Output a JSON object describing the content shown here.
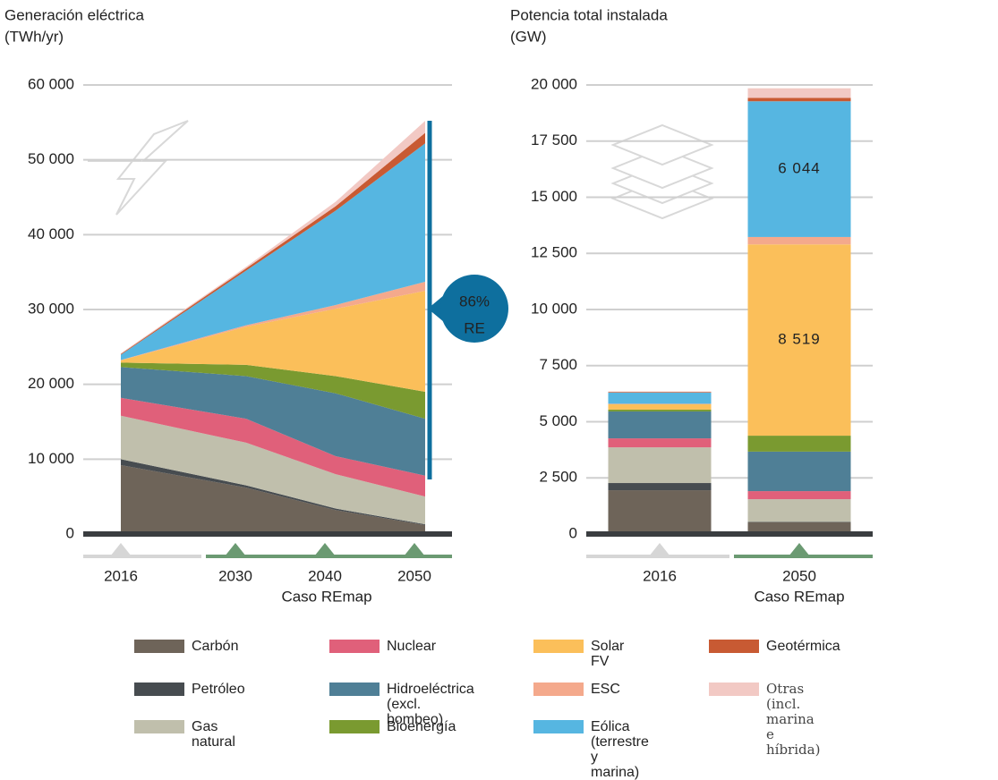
{
  "chart_data": [
    {
      "type": "area",
      "title": "Generación eléctrica",
      "y_label": "(TWh/yr)",
      "x": [
        2016,
        2030,
        2040,
        2050
      ],
      "xlim": [
        2016,
        2050
      ],
      "x_group_label": "Caso REmap",
      "ylim": [
        0,
        60000
      ],
      "yticks": [
        0,
        {
          "value": 10000,
          "label": "10 000"
        },
        {
          "value": 20000,
          "label": "20 000"
        },
        {
          "value": 30000,
          "label": "30 000"
        },
        {
          "value": 40000,
          "label": "40 000"
        },
        {
          "value": 50000,
          "label": "50 000"
        },
        {
          "value": 60000,
          "label": "60 000"
        }
      ],
      "grid": true,
      "stacked": true,
      "annotation": {
        "share": "86%",
        "label": "RE"
      },
      "series": [
        {
          "name": "Carbón",
          "color": "#6e6459",
          "values": [
            9200,
            6200,
            3200,
            1200
          ]
        },
        {
          "name": "Petróleo",
          "color": "#474c50",
          "values": [
            800,
            300,
            200,
            100
          ]
        },
        {
          "name": "Gas natural",
          "color": "#c0bfac",
          "values": [
            5800,
            5700,
            4600,
            3700
          ]
        },
        {
          "name": "Nuclear",
          "color": "#e0607a",
          "values": [
            2400,
            3200,
            2400,
            2800
          ]
        },
        {
          "name": "Hidroeléctrica (excl. bombeo)",
          "color": "#4f7f96",
          "values": [
            4100,
            5700,
            8400,
            7600
          ]
        },
        {
          "name": "Bioenergía",
          "color": "#7a9a30",
          "values": [
            600,
            1500,
            2300,
            3600
          ]
        },
        {
          "name": "Solar FV",
          "color": "#fbbf5a",
          "values": [
            300,
            5100,
            9000,
            13500
          ]
        },
        {
          "name": "ESC",
          "color": "#f4a98c",
          "values": [
            50,
            200,
            500,
            1200
          ]
        },
        {
          "name": "Eólica (terrestre y marina)",
          "color": "#56b6e1",
          "values": [
            700,
            7300,
            12600,
            18500
          ]
        },
        {
          "name": "Geotérmica",
          "color": "#c85a33",
          "values": [
            100,
            300,
            600,
            1400
          ]
        },
        {
          "name": "Otras  (incl. marina e híbrida)",
          "color": "#f2c9c4",
          "values": [
            100,
            200,
            600,
            1600
          ]
        }
      ]
    },
    {
      "type": "bar",
      "title": "Potencia total instalada",
      "y_label": "(GW)",
      "categories": [
        "2016",
        "2050"
      ],
      "x_group_label": "Caso REmap",
      "ylim": [
        0,
        20000
      ],
      "yticks": [
        0,
        {
          "value": 2500,
          "label": "2 500"
        },
        {
          "value": 5000,
          "label": "5 000"
        },
        {
          "value": 7500,
          "label": "7 500"
        },
        {
          "value": 10000,
          "label": "10 000"
        },
        {
          "value": 12500,
          "label": "12 500"
        },
        {
          "value": 15000,
          "label": "15 000"
        },
        {
          "value": 17500,
          "label": "17 500"
        },
        {
          "value": 20000,
          "label": "20 000"
        }
      ],
      "grid": true,
      "stacked": true,
      "series": [
        {
          "name": "Carbón",
          "color": "#6e6459",
          "values": [
            1950,
            520
          ]
        },
        {
          "name": "Petróleo",
          "color": "#474c50",
          "values": [
            320,
            20
          ]
        },
        {
          "name": "Gas natural",
          "color": "#c0bfac",
          "values": [
            1590,
            1010
          ]
        },
        {
          "name": "Nuclear",
          "color": "#e0607a",
          "values": [
            400,
            360
          ]
        },
        {
          "name": "Hidroeléctrica (excl. bombeo)",
          "color": "#4f7f96",
          "values": [
            1200,
            1760
          ]
        },
        {
          "name": "Bioenergía",
          "color": "#7a9a30",
          "values": [
            80,
            710
          ]
        },
        {
          "name": "Solar FV",
          "color": "#fbbf5a",
          "values": [
            240,
            8519
          ],
          "value_labels": [
            null,
            "8 519"
          ]
        },
        {
          "name": "ESC",
          "color": "#f4a98c",
          "values": [
            20,
            330
          ]
        },
        {
          "name": "Eólica (terrestre y marina)",
          "color": "#56b6e1",
          "values": [
            500,
            6044
          ],
          "value_labels": [
            null,
            "6 044"
          ]
        },
        {
          "name": "Geotérmica",
          "color": "#c85a33",
          "values": [
            30,
            150
          ]
        },
        {
          "name": "Otras  (incl. marina e híbrida)",
          "color": "#f2c9c4",
          "values": [
            20,
            430
          ]
        }
      ]
    }
  ]
}
